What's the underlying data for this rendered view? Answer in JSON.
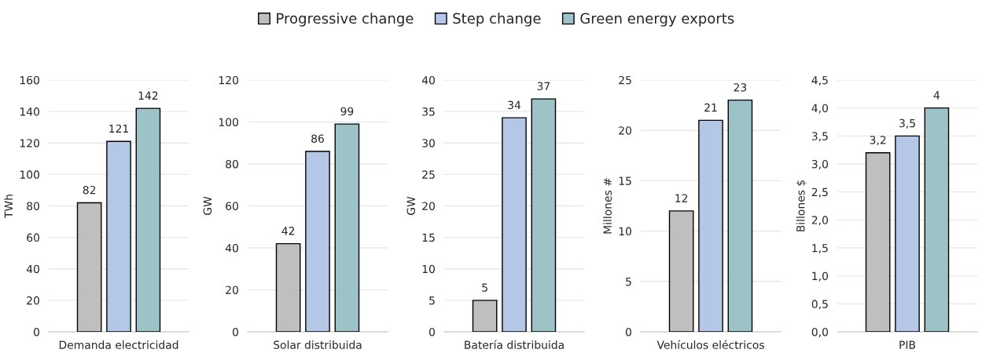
{
  "chart_data": [
    {
      "type": "bar",
      "categories": [
        "Demanda electricidad"
      ],
      "ylabel": "TWh",
      "ylim": [
        0,
        160
      ],
      "yticks": [
        0,
        20,
        40,
        60,
        80,
        100,
        120,
        140,
        160
      ],
      "grid": "y",
      "legend": "top",
      "data_labels": true,
      "series": [
        {
          "name": "Progressive change",
          "color": "#bfbfbf",
          "values": [
            82
          ]
        },
        {
          "name": "Step change",
          "color": "#b4c7e7",
          "values": [
            121
          ]
        },
        {
          "name": "Green energy exports",
          "color": "#9dc3c6",
          "values": [
            142
          ]
        }
      ]
    },
    {
      "type": "bar",
      "categories": [
        "Solar distribuida"
      ],
      "ylabel": "GW",
      "ylim": [
        0,
        120
      ],
      "yticks": [
        0,
        20,
        40,
        60,
        80,
        100,
        120
      ],
      "grid": "y",
      "data_labels": true,
      "series": [
        {
          "color": "#bfbfbf",
          "values": [
            42
          ]
        },
        {
          "color": "#b4c7e7",
          "values": [
            86
          ]
        },
        {
          "color": "#9dc3c6",
          "values": [
            99
          ]
        }
      ]
    },
    {
      "type": "bar",
      "categories": [
        "Batería distribuida"
      ],
      "ylabel": "GW",
      "ylim": [
        0,
        40
      ],
      "yticks": [
        0,
        5,
        10,
        15,
        20,
        25,
        30,
        35,
        40
      ],
      "grid": "y",
      "data_labels": true,
      "series": [
        {
          "color": "#bfbfbf",
          "values": [
            5
          ]
        },
        {
          "color": "#b4c7e7",
          "values": [
            34
          ]
        },
        {
          "color": "#9dc3c6",
          "values": [
            37
          ]
        }
      ]
    },
    {
      "type": "bar",
      "categories": [
        "Vehículos eléctricos"
      ],
      "ylabel": "Millones #",
      "ylim": [
        0,
        25
      ],
      "yticks": [
        0,
        5,
        10,
        15,
        20,
        25
      ],
      "grid": "y",
      "data_labels": true,
      "series": [
        {
          "color": "#bfbfbf",
          "values": [
            12
          ]
        },
        {
          "color": "#b4c7e7",
          "values": [
            21
          ]
        },
        {
          "color": "#9dc3c6",
          "values": [
            23
          ]
        }
      ]
    },
    {
      "type": "bar",
      "categories": [
        "PIB"
      ],
      "ylabel": "Billones $",
      "ylim": [
        0,
        4.5
      ],
      "yticks": [
        {
          "value": 0,
          "label": "0,0"
        },
        {
          "value": 0.5,
          "label": "0,5"
        },
        {
          "value": 1,
          "label": "1,0"
        },
        {
          "value": 1.5,
          "label": "1,5"
        },
        {
          "value": 2,
          "label": "2,0"
        },
        {
          "value": 2.5,
          "label": "2,5"
        },
        {
          "value": 3,
          "label": "3,0"
        },
        {
          "value": 3.5,
          "label": "3,5"
        },
        {
          "value": 4,
          "label": "4,0"
        },
        {
          "value": 4.5,
          "label": "4,5"
        }
      ],
      "grid": "y",
      "series": [
        {
          "color": "#bfbfbf",
          "values": [
            3.2
          ],
          "value_labels": [
            "3,2"
          ]
        },
        {
          "color": "#b4c7e7",
          "values": [
            3.5
          ],
          "value_labels": [
            "3,5"
          ]
        },
        {
          "color": "#9dc3c6",
          "values": [
            4
          ],
          "value_labels": [
            "4"
          ]
        }
      ]
    }
  ]
}
